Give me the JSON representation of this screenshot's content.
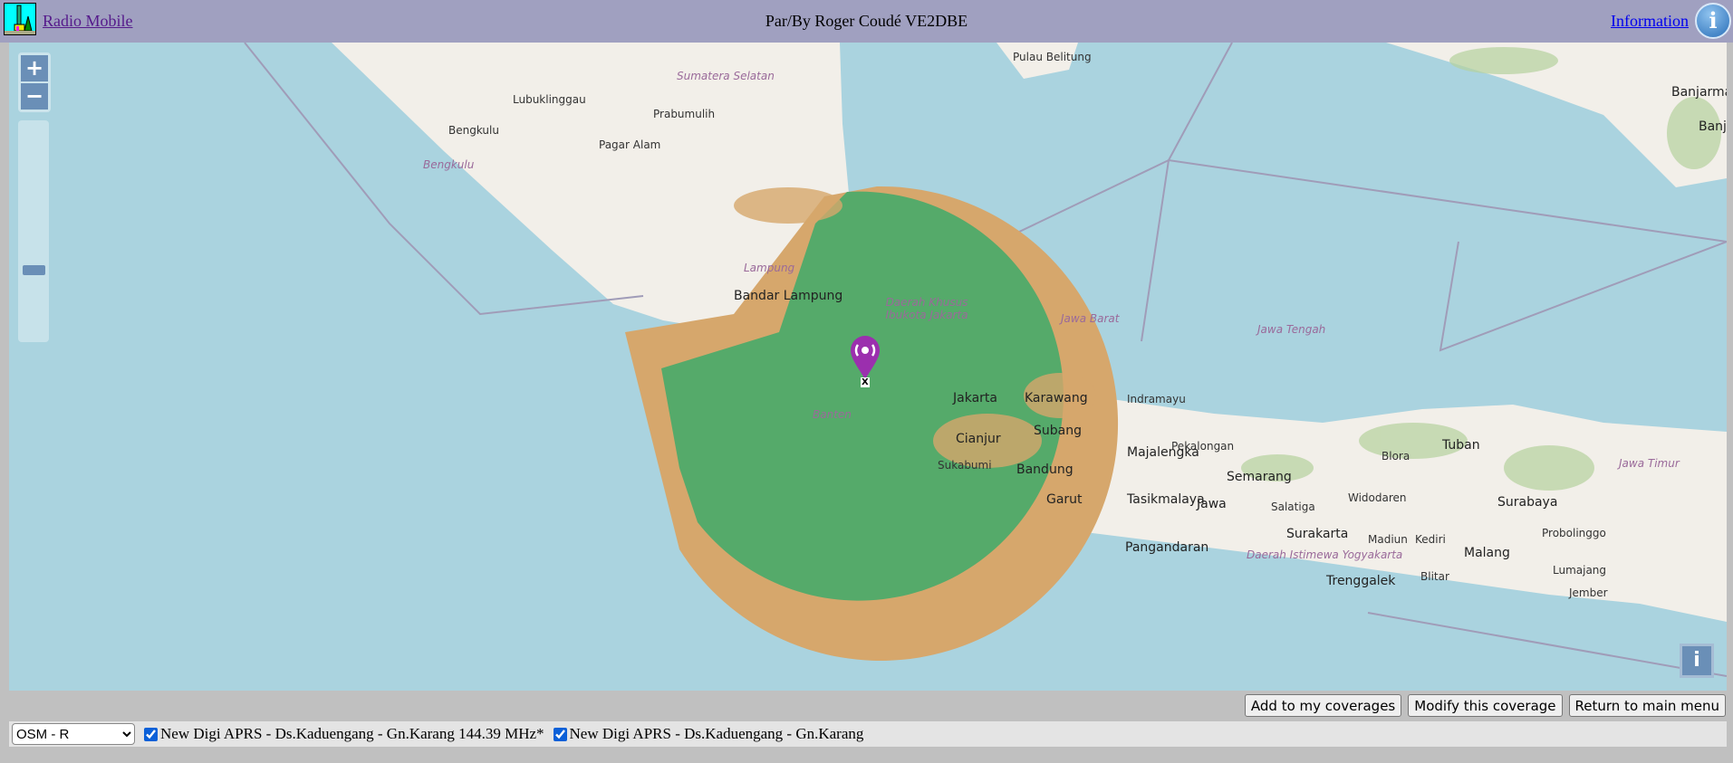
{
  "header": {
    "app_link": "Radio Mobile",
    "title": "Par/By Roger Coudé VE2DBE",
    "info_link": "Information",
    "info_icon": "info-icon"
  },
  "map": {
    "zoom_in": "+",
    "zoom_out": "−",
    "attribution_button": "i",
    "colors": {
      "sea": "#aad3df",
      "land": "#f2efe9",
      "coverage_strong": "#55aa6a",
      "coverage_weak": "#d6a76c"
    },
    "marker_label": "X",
    "labels": [
      {
        "text": "Sumatera Selatan",
        "kind": "region"
      },
      {
        "text": "Lubuklinggau",
        "kind": "city"
      },
      {
        "text": "Prabumulih",
        "kind": "city"
      },
      {
        "text": "Bengkulu",
        "kind": "city"
      },
      {
        "text": "Bengkulu",
        "kind": "region"
      },
      {
        "text": "Pagar Alam",
        "kind": "city"
      },
      {
        "text": "Pulau Belitung",
        "kind": "city"
      },
      {
        "text": "Bandar Lampung",
        "kind": "big"
      },
      {
        "text": "Lampung",
        "kind": "region"
      },
      {
        "text": "Daerah Khusus Ibukota Jakarta",
        "kind": "region"
      },
      {
        "text": "Jawa Barat",
        "kind": "region"
      },
      {
        "text": "Jakarta",
        "kind": "big"
      },
      {
        "text": "Karawang",
        "kind": "big"
      },
      {
        "text": "Indramayu",
        "kind": "city"
      },
      {
        "text": "Banten",
        "kind": "region"
      },
      {
        "text": "Cianjur",
        "kind": "big"
      },
      {
        "text": "Subang",
        "kind": "big"
      },
      {
        "text": "Sukabumi",
        "kind": "city"
      },
      {
        "text": "Bandung",
        "kind": "big"
      },
      {
        "text": "Majalengka",
        "kind": "big"
      },
      {
        "text": "Garut",
        "kind": "big"
      },
      {
        "text": "Tasikmalaya",
        "kind": "big"
      },
      {
        "text": "Pangandaran",
        "kind": "big"
      },
      {
        "text": "Jawa Tengah",
        "kind": "region"
      },
      {
        "text": "Pekalongan",
        "kind": "city"
      },
      {
        "text": "Semarang",
        "kind": "big"
      },
      {
        "text": "Jawa",
        "kind": "big"
      },
      {
        "text": "Salatiga",
        "kind": "city"
      },
      {
        "text": "Surakarta",
        "kind": "big"
      },
      {
        "text": "Widodaren",
        "kind": "city"
      },
      {
        "text": "Blora",
        "kind": "city"
      },
      {
        "text": "Tuban",
        "kind": "big"
      },
      {
        "text": "Surabaya",
        "kind": "big"
      },
      {
        "text": "Jawa Timur",
        "kind": "region"
      },
      {
        "text": "Probolinggo",
        "kind": "city"
      },
      {
        "text": "Malang",
        "kind": "big"
      },
      {
        "text": "Madiun",
        "kind": "city"
      },
      {
        "text": "Kediri",
        "kind": "city"
      },
      {
        "text": "Blitar",
        "kind": "city"
      },
      {
        "text": "Trenggalek",
        "kind": "big"
      },
      {
        "text": "Lumajang",
        "kind": "city"
      },
      {
        "text": "Jember",
        "kind": "city"
      },
      {
        "text": "Daerah Istimewa Yogyakarta",
        "kind": "region"
      },
      {
        "text": "Banjarma",
        "kind": "big"
      },
      {
        "text": "Banja",
        "kind": "big"
      }
    ]
  },
  "actions": {
    "add": "Add to my coverages",
    "modify": "Modify this coverage",
    "return": "Return to main menu"
  },
  "bottom": {
    "layer_selected": "OSM - R",
    "coverages": [
      {
        "label": "New Digi APRS - Ds.Kaduengang - Gn.Karang 144.39 MHz*",
        "checked": true
      },
      {
        "label": "New Digi APRS - Ds.Kaduengang - Gn.Karang",
        "checked": true
      }
    ]
  }
}
